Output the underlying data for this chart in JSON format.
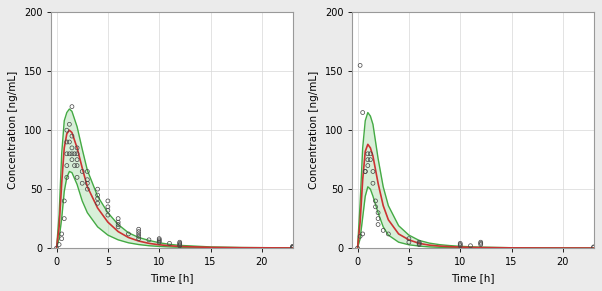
{
  "study1": {
    "obs_time": [
      0.0,
      0.25,
      0.5,
      0.5,
      0.75,
      0.75,
      1.0,
      1.0,
      1.0,
      1.0,
      1.0,
      1.25,
      1.25,
      1.25,
      1.5,
      1.5,
      1.5,
      1.5,
      1.5,
      1.75,
      1.75,
      2.0,
      2.0,
      2.0,
      2.0,
      2.0,
      2.5,
      2.5,
      3.0,
      3.0,
      3.0,
      3.0,
      4.0,
      4.0,
      4.0,
      4.0,
      5.0,
      5.0,
      5.0,
      5.0,
      6.0,
      6.0,
      6.0,
      6.0,
      7.0,
      8.0,
      8.0,
      8.0,
      8.0,
      8.0,
      9.0,
      10.0,
      10.0,
      10.0,
      10.0,
      11.0,
      12.0,
      12.0,
      12.0,
      12.0,
      23.0,
      23.0,
      23.0,
      23.0
    ],
    "obs_conc": [
      0,
      3,
      8,
      12,
      25,
      40,
      60,
      70,
      80,
      90,
      100,
      80,
      90,
      105,
      75,
      80,
      85,
      95,
      120,
      70,
      80,
      60,
      70,
      75,
      80,
      85,
      55,
      65,
      50,
      55,
      58,
      65,
      38,
      42,
      45,
      50,
      28,
      32,
      35,
      40,
      18,
      20,
      22,
      25,
      12,
      8,
      10,
      12,
      14,
      16,
      7,
      5,
      6,
      7,
      8,
      4,
      2,
      3,
      4,
      5,
      0.3,
      0.5,
      1,
      1.5
    ],
    "pred_t": [
      0.0,
      0.25,
      0.5,
      0.75,
      1.0,
      1.25,
      1.5,
      2.0,
      2.5,
      3.0,
      4.0,
      5.0,
      6.0,
      7.0,
      8.0,
      9.0,
      10.0,
      11.0,
      12.0,
      15.0,
      18.0,
      23.0
    ],
    "pred_median": [
      0,
      18,
      55,
      85,
      97,
      100,
      98,
      85,
      68,
      52,
      34,
      22,
      14,
      9,
      6,
      4,
      2.8,
      2.0,
      1.4,
      0.6,
      0.3,
      0.1
    ],
    "pred_upper": [
      0,
      28,
      80,
      108,
      115,
      118,
      116,
      103,
      84,
      66,
      44,
      30,
      20,
      13,
      9,
      6.5,
      4.5,
      3.2,
      2.3,
      1.0,
      0.5,
      0.2
    ],
    "pred_lower": [
      0,
      8,
      25,
      48,
      60,
      65,
      64,
      54,
      40,
      30,
      18,
      11,
      7,
      4.5,
      3.0,
      2.0,
      1.4,
      1.0,
      0.7,
      0.3,
      0.15,
      0.05
    ]
  },
  "study2": {
    "obs_time": [
      0.0,
      0.25,
      0.25,
      0.5,
      0.5,
      0.75,
      0.75,
      1.0,
      1.0,
      1.0,
      1.25,
      1.25,
      1.5,
      1.5,
      1.75,
      1.75,
      2.0,
      2.0,
      2.0,
      2.5,
      3.0,
      5.0,
      5.0,
      6.0,
      6.0,
      6.0,
      10.0,
      10.0,
      10.0,
      11.0,
      12.0,
      12.0,
      12.0,
      23.0,
      23.0
    ],
    "obs_conc": [
      0,
      155,
      10,
      115,
      12,
      65,
      65,
      80,
      70,
      75,
      75,
      80,
      65,
      55,
      40,
      35,
      30,
      25,
      20,
      15,
      12,
      8,
      5,
      3,
      4,
      5,
      2,
      3,
      4,
      2,
      3,
      4,
      5,
      0.5,
      1
    ],
    "pred_t": [
      0.0,
      0.25,
      0.5,
      0.75,
      1.0,
      1.25,
      1.5,
      2.0,
      2.5,
      3.0,
      4.0,
      5.0,
      6.0,
      7.0,
      8.0,
      9.0,
      10.0,
      11.0,
      12.0,
      15.0,
      18.0,
      23.0
    ],
    "pred_median": [
      0,
      22,
      58,
      82,
      88,
      85,
      78,
      55,
      36,
      24,
      12,
      7,
      4,
      2.5,
      1.7,
      1.2,
      0.85,
      0.6,
      0.45,
      0.18,
      0.08,
      0.03
    ],
    "pred_upper": [
      0,
      38,
      85,
      108,
      115,
      112,
      105,
      76,
      52,
      36,
      19,
      11,
      6.5,
      4.2,
      2.9,
      2.1,
      1.5,
      1.1,
      0.8,
      0.32,
      0.14,
      0.06
    ],
    "pred_lower": [
      0,
      8,
      26,
      44,
      52,
      50,
      44,
      30,
      18,
      11,
      5,
      2.8,
      1.7,
      1.0,
      0.65,
      0.45,
      0.32,
      0.23,
      0.17,
      0.07,
      0.03,
      0.01
    ]
  },
  "bg_color": "#ebebeb",
  "plot_bg": "#ffffff",
  "grid_color": "#d8d8d8",
  "obs_color": "#444444",
  "median_color": "#cc3333",
  "band_fill_color": "#aaddaa",
  "band_fill_alpha": 0.45,
  "band_edge_color": "#44aa44",
  "band_edge_width": 1.0,
  "median_lw": 1.2,
  "xlabel": "Time [h]",
  "ylabel": "Concentration [ng/mL]",
  "ylim": [
    0,
    200
  ],
  "xlim": [
    -0.5,
    23
  ],
  "yticks": [
    0,
    50,
    100,
    150,
    200
  ],
  "xticks": [
    0,
    5,
    10,
    15,
    20
  ],
  "xticklabels": [
    "0",
    "5",
    "10",
    "15",
    "20"
  ],
  "obs_marker_size": 8,
  "obs_lw": 0.5,
  "tick_labelsize": 7,
  "axis_labelsize": 7.5,
  "spine_color": "#999999",
  "spine_lw": 0.8
}
